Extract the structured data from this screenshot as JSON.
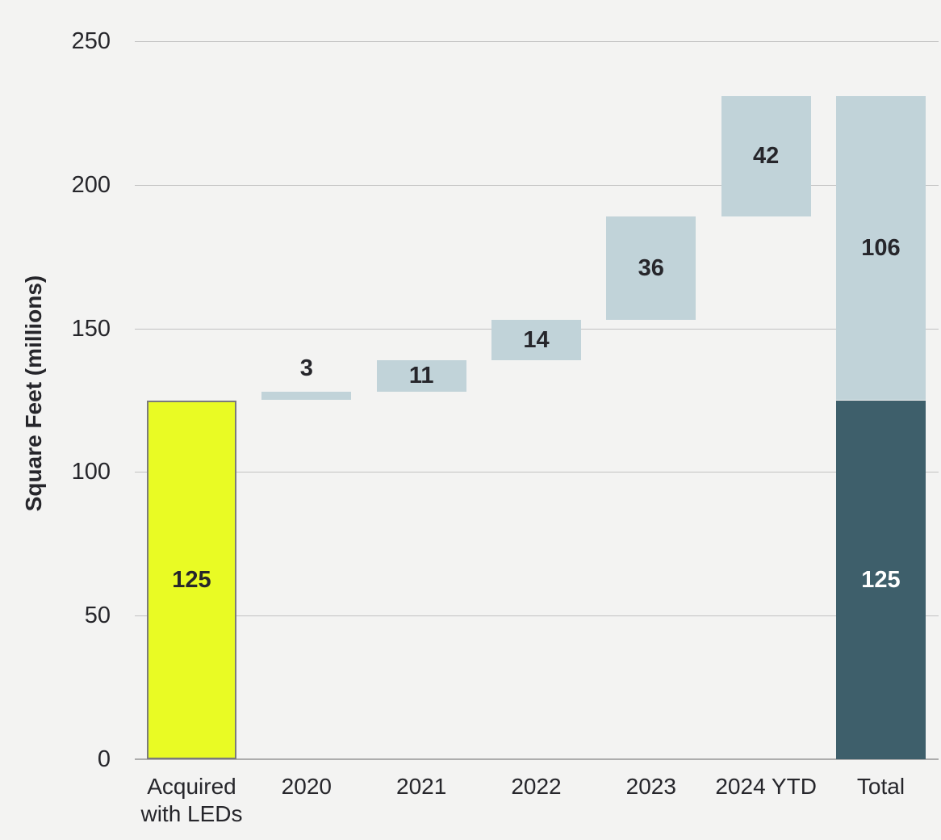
{
  "chart_data": {
    "type": "bar",
    "subtype": "waterfall",
    "title": "",
    "xlabel": "",
    "ylabel": "Square Feet (millions)",
    "ylim": [
      0,
      250
    ],
    "yticks": [
      0,
      50,
      100,
      150,
      200,
      250
    ],
    "grid": true,
    "legend": false,
    "categories": [
      "Acquired with LEDs",
      "2020",
      "2021",
      "2022",
      "2023",
      "2024 YTD",
      "Total"
    ],
    "bars": [
      {
        "category": "Acquired with LEDs",
        "segments": [
          {
            "start": 0,
            "end": 125,
            "value": 125,
            "label": "125",
            "color_key": "highlight_yellow",
            "border": true,
            "label_style": "dark",
            "label_position": "center"
          }
        ]
      },
      {
        "category": "2020",
        "segments": [
          {
            "start": 125,
            "end": 128,
            "value": 3,
            "label": "3",
            "color_key": "light_blue",
            "border": false,
            "label_style": "dark",
            "label_position": "above"
          }
        ]
      },
      {
        "category": "2021",
        "segments": [
          {
            "start": 128,
            "end": 139,
            "value": 11,
            "label": "11",
            "color_key": "light_blue",
            "border": false,
            "label_style": "dark",
            "label_position": "center"
          }
        ]
      },
      {
        "category": "2022",
        "segments": [
          {
            "start": 139,
            "end": 153,
            "value": 14,
            "label": "14",
            "color_key": "light_blue",
            "border": false,
            "label_style": "dark",
            "label_position": "center"
          }
        ]
      },
      {
        "category": "2023",
        "segments": [
          {
            "start": 153,
            "end": 189,
            "value": 36,
            "label": "36",
            "color_key": "light_blue",
            "border": false,
            "label_style": "dark",
            "label_position": "center"
          }
        ]
      },
      {
        "category": "2024 YTD",
        "segments": [
          {
            "start": 189,
            "end": 231,
            "value": 42,
            "label": "42",
            "color_key": "light_blue",
            "border": false,
            "label_style": "dark",
            "label_position": "center"
          }
        ]
      },
      {
        "category": "Total",
        "segments": [
          {
            "start": 0,
            "end": 125,
            "value": 125,
            "label": "125",
            "color_key": "dark_teal",
            "border": false,
            "label_style": "light",
            "label_position": "center"
          },
          {
            "start": 125,
            "end": 231,
            "value": 106,
            "label": "106",
            "color_key": "light_blue",
            "border": false,
            "label_style": "dark",
            "label_position": "center"
          }
        ]
      }
    ],
    "colors": {
      "background": "#f3f3f2",
      "highlight_yellow": "#e9fb24",
      "light_blue": "#c1d3d9",
      "dark_teal": "#3e5f6b",
      "bar_border": "#7b7b7b",
      "gridline": "#c2c2c2",
      "axis_line": "#adadad",
      "text_dark": "#26262b",
      "text_light": "#ffffff"
    }
  }
}
